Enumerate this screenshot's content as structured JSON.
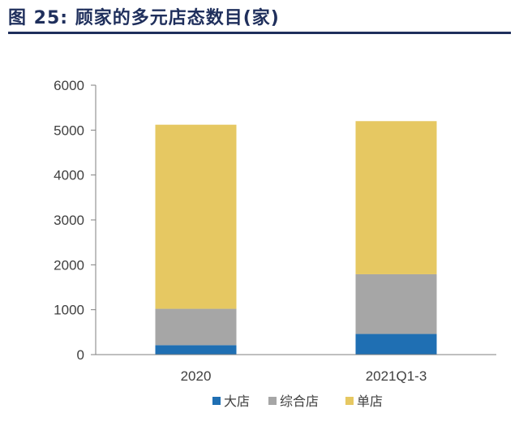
{
  "figure_title": "图 25: 顾家的多元店态数目(家)",
  "chart_data": {
    "type": "bar",
    "stacked": true,
    "title": "",
    "xlabel": "",
    "ylabel": "",
    "categories": [
      "2020",
      "2021Q1-3"
    ],
    "ylim": [
      0,
      6000
    ],
    "yticks": [
      0,
      1000,
      2000,
      3000,
      4000,
      5000,
      6000
    ],
    "series": [
      {
        "name": "大店",
        "color": "#1f6fb3",
        "values": [
          210,
          460
        ]
      },
      {
        "name": "综合店",
        "color": "#a6a6a6",
        "values": [
          810,
          1330
        ]
      },
      {
        "name": "单店",
        "color": "#e6c862",
        "values": [
          4100,
          3410
        ]
      }
    ],
    "legend_position": "bottom-center",
    "grid": false
  }
}
